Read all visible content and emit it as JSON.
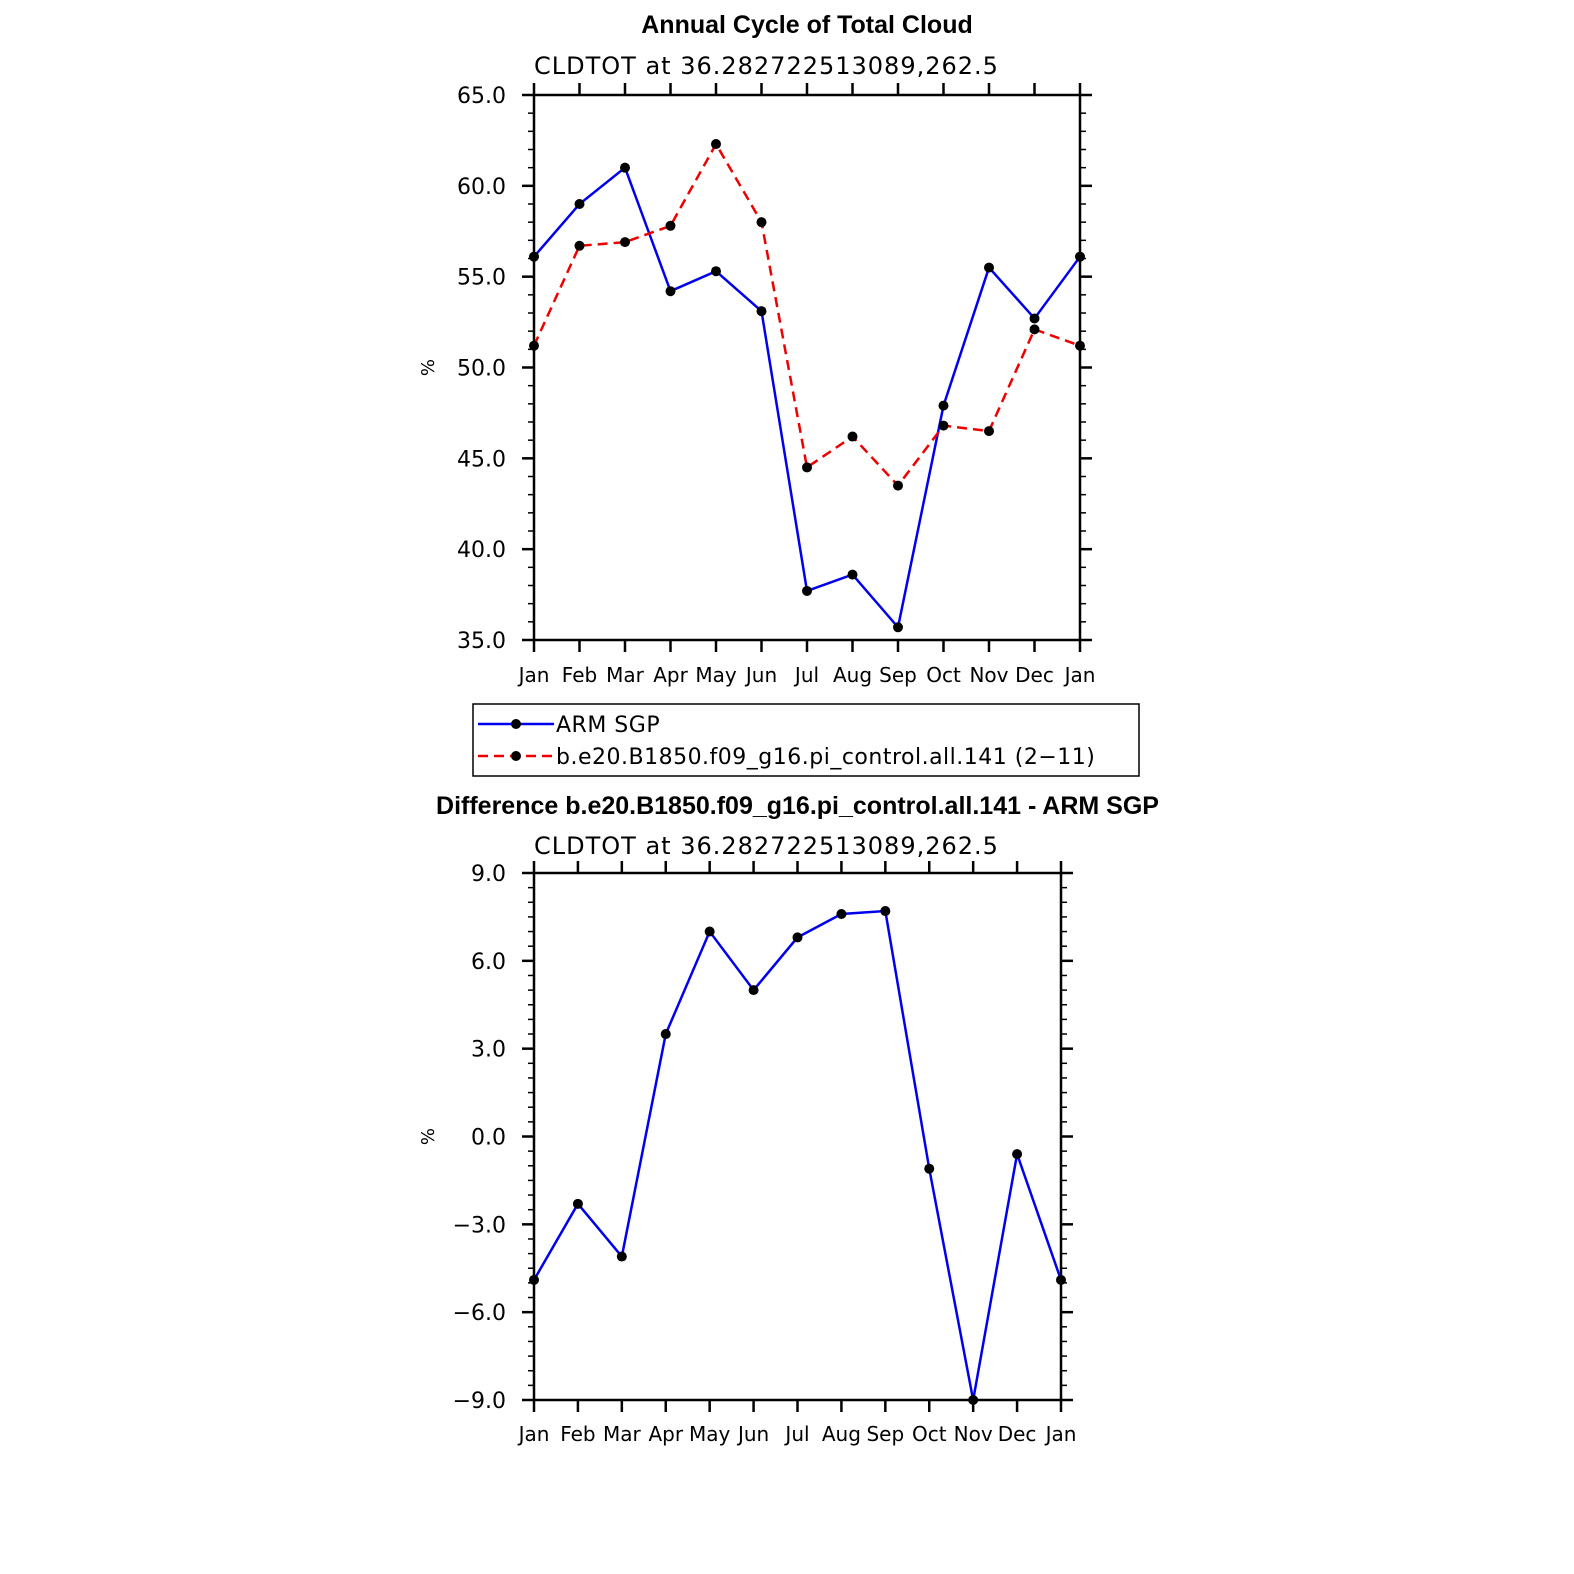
{
  "chart_data": [
    {
      "type": "line",
      "title": "Annual Cycle of Total Cloud",
      "subtitle": "CLDTOT at 36.282722513089,262.5",
      "ylabel": "%",
      "ylim": [
        35.0,
        65.0
      ],
      "yticks": [
        "35.0",
        "40.0",
        "45.0",
        "50.0",
        "55.0",
        "60.0",
        "65.0"
      ],
      "yticks_values": [
        35,
        40,
        45,
        50,
        55,
        60,
        65
      ],
      "categories": [
        "Jan",
        "Feb",
        "Mar",
        "Apr",
        "May",
        "Jun",
        "Jul",
        "Aug",
        "Sep",
        "Oct",
        "Nov",
        "Dec",
        "Jan"
      ],
      "series": [
        {
          "name": "ARM SGP",
          "color": "#0000ee",
          "dash": "solid",
          "values": [
            56.1,
            59.0,
            61.0,
            54.2,
            55.3,
            53.1,
            37.7,
            38.6,
            35.7,
            47.9,
            55.5,
            52.7,
            56.1
          ]
        },
        {
          "name": "b.e20.B1850.f09_g16.pi_control.all.141 (2−11)",
          "color": "#ee0000",
          "dash": "dashed",
          "values": [
            51.2,
            56.7,
            56.9,
            57.8,
            62.3,
            58.0,
            44.5,
            46.2,
            43.5,
            46.8,
            46.5,
            52.1,
            51.2
          ]
        }
      ],
      "legend": "below"
    },
    {
      "type": "line",
      "title": "Difference b.e20.B1850.f09_g16.pi_control.all.141 - ARM SGP",
      "subtitle": "CLDTOT at 36.282722513089,262.5",
      "ylabel": "%",
      "ylim": [
        -9.0,
        9.0
      ],
      "yticks": [
        "−9.0",
        "−6.0",
        "−3.0",
        "0.0",
        "3.0",
        "6.0",
        "9.0"
      ],
      "yticks_values": [
        -9,
        -6,
        -3,
        0,
        3,
        6,
        9
      ],
      "categories": [
        "Jan",
        "Feb",
        "Mar",
        "Apr",
        "May",
        "Jun",
        "Jul",
        "Aug",
        "Sep",
        "Oct",
        "Nov",
        "Dec",
        "Jan"
      ],
      "series": [
        {
          "name": "Difference",
          "color": "#0000ee",
          "dash": "solid",
          "values": [
            -4.9,
            -2.3,
            -4.1,
            3.5,
            7.0,
            5.0,
            6.8,
            7.6,
            7.7,
            -1.1,
            -9.0,
            -0.6,
            -4.9
          ]
        }
      ]
    }
  ]
}
